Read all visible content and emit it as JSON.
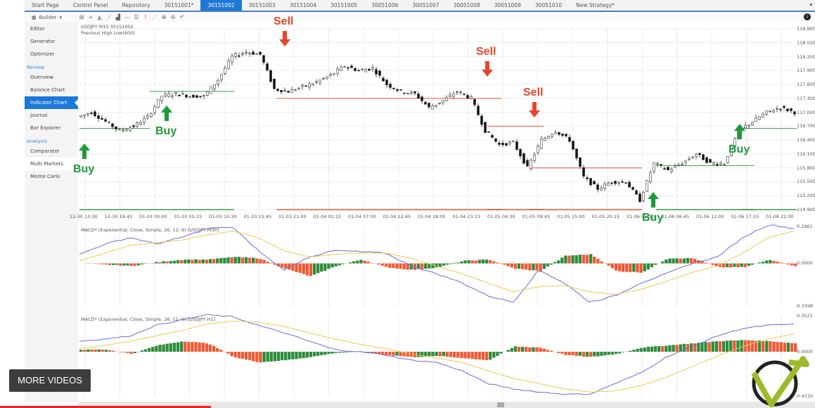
{
  "tabs": [
    "Start Page",
    "Control Panel",
    "Repository",
    "30151001*",
    "30151002",
    "30151003",
    "30151004",
    "30151005",
    "30051006",
    "30051007",
    "30051008",
    "30051009",
    "30051010",
    "New Strategy*"
  ],
  "active_tab": "30151002",
  "toolbar": {
    "builder_label": "Builder",
    "icons": [
      "grid-icon",
      "crosshair-icon",
      "area-icon",
      "line-chart-icon",
      "bar-icon",
      "hline-icon",
      "levels-icon",
      "exclamation-icon",
      "scatter-icon",
      "zoom-in-icon",
      "zoom-out-icon",
      "reset-icon"
    ]
  },
  "sidebar": {
    "items": [
      {
        "label": "Editor"
      },
      {
        "label": "Generator"
      },
      {
        "label": "Optimizer"
      }
    ],
    "review_heading": "Review",
    "review": [
      {
        "label": "Overview"
      },
      {
        "label": "Balance Chart"
      },
      {
        "label": "Indicator Chart",
        "active": true
      },
      {
        "label": "Journal"
      },
      {
        "label": "Bar Explorer"
      }
    ],
    "analysis_heading": "Analysis",
    "analysis": [
      {
        "label": "Comparator"
      },
      {
        "label": "Multi Markets",
        "highlight": true
      },
      {
        "label": "Monte Carlo"
      }
    ]
  },
  "chart_data": [
    {
      "type": "candlestick",
      "title": "USDJPY  M15 30151002",
      "subtitle": "Previous High Low(600)",
      "yticks": [
        "118.800",
        "118.500",
        "118.200",
        "117.900",
        "117.600",
        "117.300",
        "117.000",
        "116.700",
        "116.400",
        "116.100",
        "115.800",
        "115.500",
        "115.200",
        "114.900"
      ],
      "ylim": [
        114.9,
        118.8
      ],
      "xticks": [
        "12-30 13:30",
        "12-30 18:45",
        "01-03 00:00",
        "01-03 05:15",
        "01-03 10:30",
        "01-03 15:45",
        "01-03 21:00",
        "01-04 02:15",
        "01-04 07:30",
        "01-04 12:45",
        "01-04 18:00",
        "01-04 23:15",
        "01-05 04:30",
        "01-05 09:45",
        "01-05 15:00",
        "01-05 20:15",
        "01-06 01:30",
        "01-06 06:45",
        "01-06 12:00",
        "01-06 17:15",
        "01-08 22:30"
      ],
      "close": [
        116.9,
        117.0,
        116.8,
        116.6,
        116.7,
        116.9,
        117.35,
        117.4,
        117.35,
        117.35,
        117.7,
        118.2,
        118.3,
        118.25,
        117.5,
        117.45,
        117.55,
        117.65,
        117.8,
        118.0,
        117.9,
        117.95,
        117.6,
        117.45,
        117.4,
        117.1,
        117.25,
        117.45,
        117.3,
        116.6,
        116.3,
        116.35,
        115.8,
        116.4,
        116.6,
        116.4,
        115.6,
        115.35,
        115.5,
        115.5,
        115.1,
        115.9,
        115.75,
        115.9,
        116.1,
        115.9,
        115.9,
        116.6,
        116.8,
        117.0,
        117.1,
        117.0
      ],
      "levels": [
        {
          "from": 0,
          "to": 5,
          "price": 116.65,
          "color": "#3a9a4a"
        },
        {
          "from": 5,
          "to": 11,
          "price": 117.45,
          "color": "#3a9a4a"
        },
        {
          "from": 14,
          "to": 30,
          "price": 117.3,
          "color": "#e8533a"
        },
        {
          "from": 29,
          "to": 33,
          "price": 116.7,
          "color": "#e8533a"
        },
        {
          "from": 32,
          "to": 40,
          "price": 115.8,
          "color": "#e8533a"
        },
        {
          "from": 41,
          "to": 48,
          "price": 115.85,
          "color": "#3a9a4a"
        },
        {
          "from": 47,
          "to": 51,
          "price": 116.65,
          "color": "#3a9a4a"
        }
      ],
      "signals": [
        {
          "label": "Buy",
          "type": "buy"
        },
        {
          "label": "Buy",
          "type": "buy"
        },
        {
          "label": "Sell",
          "type": "sell"
        },
        {
          "label": "Sell",
          "type": "sell"
        },
        {
          "label": "Sell",
          "type": "sell"
        },
        {
          "label": "Buy",
          "type": "buy"
        },
        {
          "label": "Buy",
          "type": "buy"
        }
      ]
    },
    {
      "type": "macd",
      "title": "MACD* (Exponential, Close, Simple, 26, 12, 9) [USDJPY M30]",
      "ymax": "0.2961",
      "yzero": "0.0000",
      "ymin": "-0.3398",
      "ylim": [
        -0.3398,
        0.2961
      ],
      "histogram": [
        0,
        -0.01,
        -0.02,
        0.01,
        0.03,
        0.03,
        0.05,
        0.04,
        -0.04,
        -0.1,
        -0.02,
        0.03,
        -0.03,
        -0.05,
        -0.03,
        0.02,
        0.03,
        -0.04,
        -0.06,
        0.06,
        0.07,
        -0.06,
        -0.07,
        0.04,
        0.04,
        -0.03,
        -0.03,
        0.03,
        -0.02
      ],
      "macd": [
        0.07,
        0.15,
        0.2,
        0.15,
        0.2,
        0.27,
        0.28,
        0.1,
        -0.05,
        0.05,
        0.1,
        0.09,
        0.08,
        -0.02,
        -0.08,
        -0.15,
        -0.25,
        -0.3,
        -0.05,
        -0.15,
        -0.3,
        -0.25,
        -0.15,
        -0.08,
        0,
        0.05,
        0.2,
        0.3,
        0.27
      ],
      "signal": [
        0.02,
        0.08,
        0.14,
        0.16,
        0.18,
        0.22,
        0.25,
        0.2,
        0.1,
        0.05,
        0.07,
        0.08,
        0.08,
        0.04,
        -0.02,
        -0.08,
        -0.15,
        -0.22,
        -0.18,
        -0.17,
        -0.22,
        -0.24,
        -0.2,
        -0.14,
        -0.07,
        -0.02,
        0.08,
        0.2,
        0.25
      ]
    },
    {
      "type": "macd",
      "title": "MACD* (Exponential, Close, Simple, 26, 12, 9) [USDJPY H1]",
      "ymax": "0.3521",
      "yzero": "0.0000",
      "ymin": "-0.4310",
      "ylim": [
        -0.431,
        0.3521
      ],
      "histogram": [
        0.02,
        0.02,
        -0.02,
        0.06,
        0.1,
        0.08,
        -0.05,
        -0.1,
        -0.08,
        -0.05,
        -0.01,
        0,
        -0.03,
        -0.05,
        -0.04,
        -0.06,
        -0.08,
        0.05,
        0.04,
        -0.03,
        -0.05,
        -0.02,
        0.04,
        0.06,
        0.08,
        0.1,
        0.11,
        0.1,
        0.08
      ],
      "macd": [
        0.1,
        0.12,
        0.15,
        0.25,
        0.3,
        0.35,
        0.33,
        0.25,
        0.18,
        0.1,
        0.02,
        0,
        -0.03,
        -0.08,
        -0.1,
        -0.18,
        -0.3,
        -0.35,
        -0.38,
        -0.4,
        -0.4,
        -0.3,
        -0.2,
        -0.05,
        0.05,
        0.15,
        0.22,
        0.25,
        0.26
      ],
      "signal": [
        0.03,
        0.06,
        0.1,
        0.15,
        0.2,
        0.26,
        0.29,
        0.28,
        0.24,
        0.18,
        0.12,
        0.07,
        0.03,
        -0.02,
        -0.06,
        -0.1,
        -0.18,
        -0.25,
        -0.3,
        -0.35,
        -0.38,
        -0.37,
        -0.32,
        -0.24,
        -0.14,
        -0.04,
        0.05,
        0.12,
        0.17
      ]
    }
  ],
  "overlay": {
    "more_videos": "MORE VIDEOS"
  },
  "colors": {
    "accent": "#1e78d7",
    "up": "#2e8b3a",
    "down": "#ef5a34",
    "macd": "#6a6ad8",
    "signal": "#f2c94c",
    "sell": "#e8452c",
    "buy": "#1f9a3b"
  }
}
